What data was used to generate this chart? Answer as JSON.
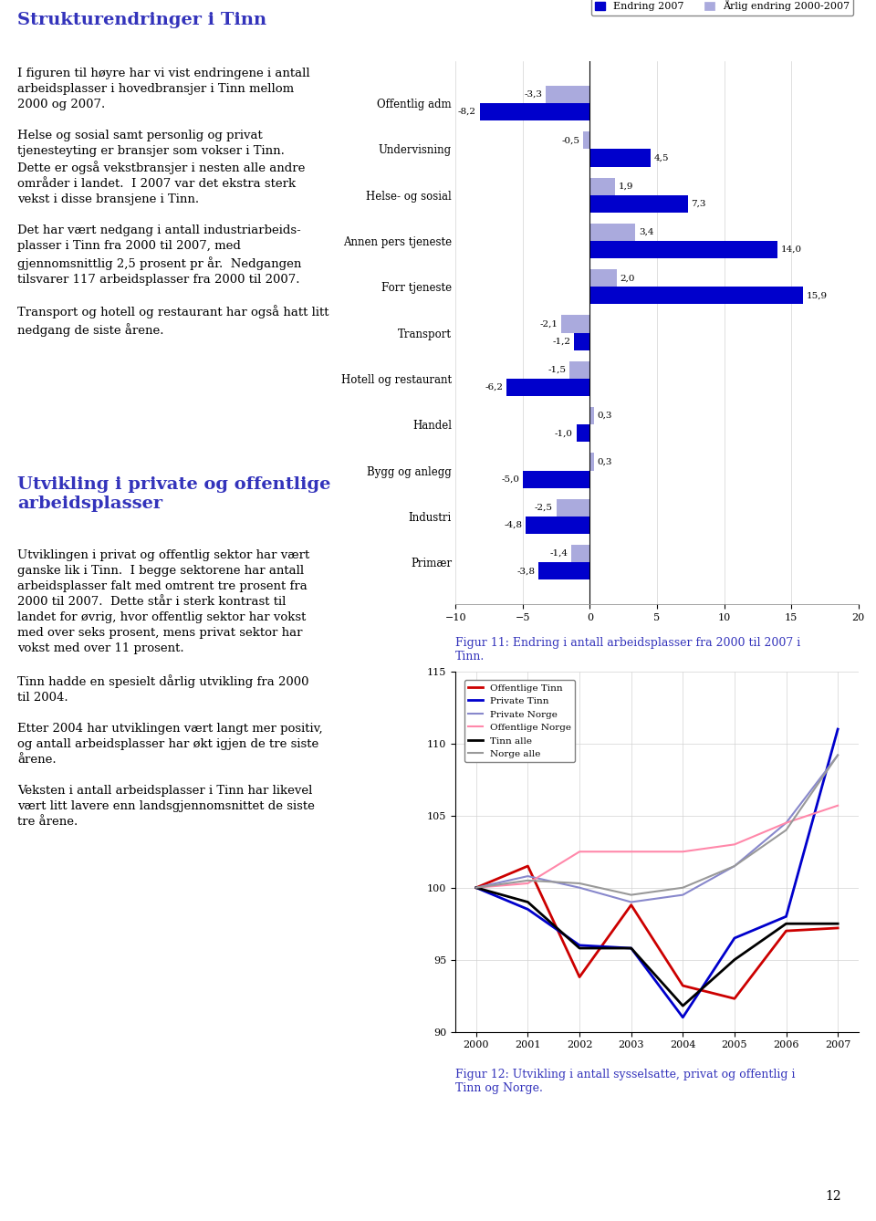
{
  "bar_categories": [
    "Offentlig adm",
    "Undervisning",
    "Helse- og sosial",
    "Annen pers tjeneste",
    "Forr tjeneste",
    "Transport",
    "Hotell og restaurant",
    "Handel",
    "Bygg og anlegg",
    "Industri",
    "Primær"
  ],
  "bar_endring2007": [
    -8.2,
    4.5,
    7.3,
    14.0,
    15.9,
    -1.2,
    -6.2,
    -1.0,
    -5.0,
    -4.8,
    -3.8
  ],
  "bar_arlig20002007": [
    -3.3,
    -0.5,
    1.9,
    3.4,
    2.0,
    -2.1,
    -1.5,
    0.3,
    0.3,
    -2.5,
    -1.4
  ],
  "bar_xlim": [
    -10.0,
    20.0
  ],
  "bar_xticks": [
    -10.0,
    -5.0,
    0.0,
    5.0,
    10.0,
    15.0,
    20.0
  ],
  "bar_color_endring": "#0000CC",
  "bar_color_arlig": "#AAAADD",
  "bar_legend_endring": "Endring 2007",
  "bar_legend_arlig": "Årlig endring 2000-2007",
  "fig11_caption": "Figur 11: Endring i antall arbeidsplasser fra 2000 til 2007 i\nTinn.",
  "line_years": [
    2000,
    2001,
    2002,
    2003,
    2004,
    2005,
    2006,
    2007
  ],
  "line_offentlige_tinn": [
    100,
    101.5,
    93.8,
    98.8,
    93.2,
    92.3,
    97.0,
    97.2
  ],
  "line_private_tinn": [
    100,
    98.5,
    96.0,
    95.8,
    91.0,
    96.5,
    98.0,
    111.0
  ],
  "line_private_norge": [
    100,
    100.8,
    100.0,
    99.0,
    99.5,
    101.5,
    104.5,
    109.2
  ],
  "line_offentlige_norge": [
    100,
    100.3,
    102.5,
    102.5,
    102.5,
    103.0,
    104.5,
    105.7
  ],
  "line_tinn_alle": [
    100,
    99.0,
    95.8,
    95.8,
    91.8,
    95.0,
    97.5,
    97.5
  ],
  "line_norge_alle": [
    100,
    100.5,
    100.3,
    99.5,
    100.0,
    101.5,
    104.0,
    109.2
  ],
  "line_ylim": [
    90,
    115
  ],
  "line_yticks": [
    90,
    95,
    100,
    105,
    110,
    115
  ],
  "line_colors": [
    "#CC0000",
    "#0000CC",
    "#8888CC",
    "#FF88AA",
    "#000000",
    "#999999"
  ],
  "line_labels": [
    "Offentlige Tinn",
    "Private Tinn",
    "Private Norge",
    "Offentlige Norge",
    "Tinn alle",
    "Norge alle"
  ],
  "line_widths": [
    2.0,
    2.0,
    1.5,
    1.5,
    2.0,
    1.5
  ],
  "fig12_caption": "Figur 12: Utvikling i antall sysselsatte, privat og offentlig i\nTinn og Norge.",
  "title_color": "#3333BB",
  "main_title": "Strukturendringer i Tinn",
  "page_number": "12"
}
